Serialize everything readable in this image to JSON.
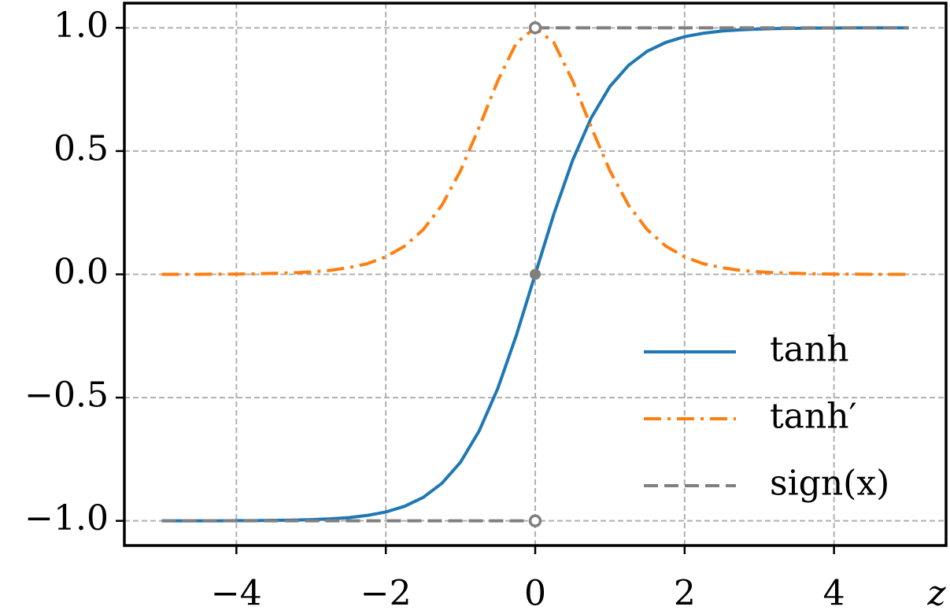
{
  "chart_data": {
    "type": "line",
    "x_label": "z",
    "x": [
      -5,
      -4.75,
      -4.5,
      -4.25,
      -4,
      -3.75,
      -3.5,
      -3.25,
      -3,
      -2.75,
      -2.5,
      -2.25,
      -2,
      -1.75,
      -1.5,
      -1.25,
      -1,
      -0.75,
      -0.5,
      -0.25,
      0,
      0.25,
      0.5,
      0.75,
      1,
      1.25,
      1.5,
      1.75,
      2,
      2.25,
      2.5,
      2.75,
      3,
      3.25,
      3.5,
      3.75,
      4,
      4.25,
      4.5,
      4.75,
      5
    ],
    "series": [
      {
        "name": "tanh",
        "color": "#1f77b4",
        "dash": "solid",
        "values": [
          -1.0,
          -1.0,
          -1.0,
          -1.0,
          -0.999,
          -0.999,
          -0.998,
          -0.997,
          -0.995,
          -0.992,
          -0.987,
          -0.978,
          -0.964,
          -0.941,
          -0.905,
          -0.848,
          -0.762,
          -0.635,
          -0.462,
          -0.245,
          0,
          0.245,
          0.462,
          0.635,
          0.762,
          0.848,
          0.905,
          0.941,
          0.964,
          0.978,
          0.987,
          0.992,
          0.995,
          0.997,
          0.998,
          0.999,
          0.999,
          1.0,
          1.0,
          1.0,
          1.0
        ]
      },
      {
        "name": "tanh′",
        "color": "#ff7f0e",
        "dash": "dashdot",
        "values": [
          0.0,
          0.0,
          0.0,
          0.001,
          0.001,
          0.002,
          0.004,
          0.006,
          0.01,
          0.016,
          0.027,
          0.043,
          0.071,
          0.114,
          0.181,
          0.28,
          0.42,
          0.597,
          0.786,
          0.94,
          1,
          0.94,
          0.786,
          0.597,
          0.42,
          0.28,
          0.181,
          0.114,
          0.071,
          0.043,
          0.027,
          0.016,
          0.01,
          0.006,
          0.004,
          0.002,
          0.001,
          0.001,
          0.0,
          0.0,
          0.0
        ]
      },
      {
        "name": "sign(x)",
        "color": "#808080",
        "dash": "dashed",
        "x": [
          -5,
          0,
          0,
          0,
          5
        ],
        "values": [
          -1,
          -1,
          null,
          1,
          1
        ]
      }
    ],
    "points": [
      {
        "x": 0,
        "y": 1,
        "filled": false,
        "color": "#808080"
      },
      {
        "x": 0,
        "y": 0,
        "filled": true,
        "color": "#808080"
      },
      {
        "x": 0,
        "y": -1,
        "filled": false,
        "color": "#808080"
      }
    ],
    "xlim": [
      -5.5,
      5.5
    ],
    "ylim": [
      -1.1,
      1.1
    ],
    "xticks": [
      {
        "value": -4,
        "label": "−4"
      },
      {
        "value": -2,
        "label": "−2"
      },
      0,
      2,
      4
    ],
    "yticks": [
      {
        "value": -1,
        "label": "−1.0"
      },
      {
        "value": -0.5,
        "label": "−0.5"
      },
      {
        "value": 0,
        "label": "0.0"
      },
      {
        "value": 0.5,
        "label": "0.5"
      },
      {
        "value": 1,
        "label": "1.0"
      }
    ],
    "grid": true,
    "legend": "lower right"
  }
}
